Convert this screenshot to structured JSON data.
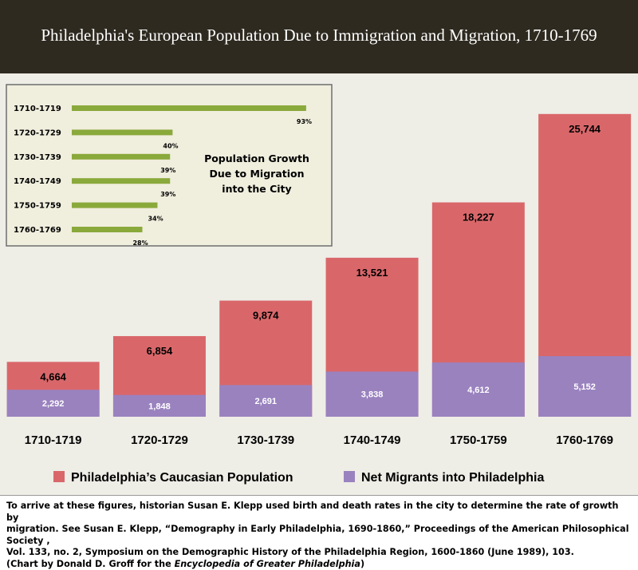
{
  "title": "Philadelphia's European Population Due to Immigration and Migration, 1710-1769",
  "colors": {
    "population": "#d9676a",
    "migrants": "#9a82bf",
    "inset_bar": "#8aa93b",
    "title_bg": "#2e2a20",
    "plot_bg": "#eeede6",
    "inset_bg": "#f0eedd"
  },
  "chart_data": [
    {
      "type": "bar",
      "title": "",
      "categories": [
        "1710-1719",
        "1720-1729",
        "1730-1739",
        "1740-1749",
        "1750-1759",
        "1760-1769"
      ],
      "series": [
        {
          "name": "Philadelphia’s Caucasian Population",
          "values": [
            4664,
            6854,
            9874,
            13521,
            18227,
            25744
          ],
          "labels": [
            "4,664",
            "6,854",
            "9,874",
            "13,521",
            "18,227",
            "25,744"
          ]
        },
        {
          "name": "Net Migrants into Philadelphia",
          "values": [
            2292,
            1848,
            2691,
            3838,
            4612,
            5152
          ],
          "labels": [
            "2,292",
            "1,848",
            "2,691",
            "3,838",
            "4,612",
            "5,152"
          ]
        }
      ],
      "ylim": [
        0,
        27000
      ],
      "legend": "bottom"
    },
    {
      "type": "bar",
      "orientation": "horizontal",
      "title": "Population Growth Due to Migration into the City",
      "categories": [
        "1710-1719",
        "1720-1729",
        "1730-1739",
        "1740-1749",
        "1750-1759",
        "1760-1769"
      ],
      "values": [
        93,
        40,
        39,
        39,
        34,
        28
      ],
      "labels": [
        "93%",
        "40%",
        "39%",
        "39%",
        "34%",
        "28%"
      ],
      "unit": "%"
    }
  ],
  "footnote": {
    "line1": "To arrive at these figures, historian Susan E. Klepp used birth and death rates in the city to determine the rate of growth by",
    "line2": "migration.  See Susan E. Klepp, “Demography in Early Philadelphia, 1690-1860,” Proceedings of the American Philosophical Society ,",
    "line3": "Vol. 133, no. 2, Symposium on the Demographic History of the Philadelphia Region, 1600-1860 (June 1989), 103.",
    "credit_prefix": "(Chart by Donald D. Groff for the ",
    "credit_source": "Encyclopedia of Greater Philadelphia",
    "credit_suffix": ")"
  }
}
